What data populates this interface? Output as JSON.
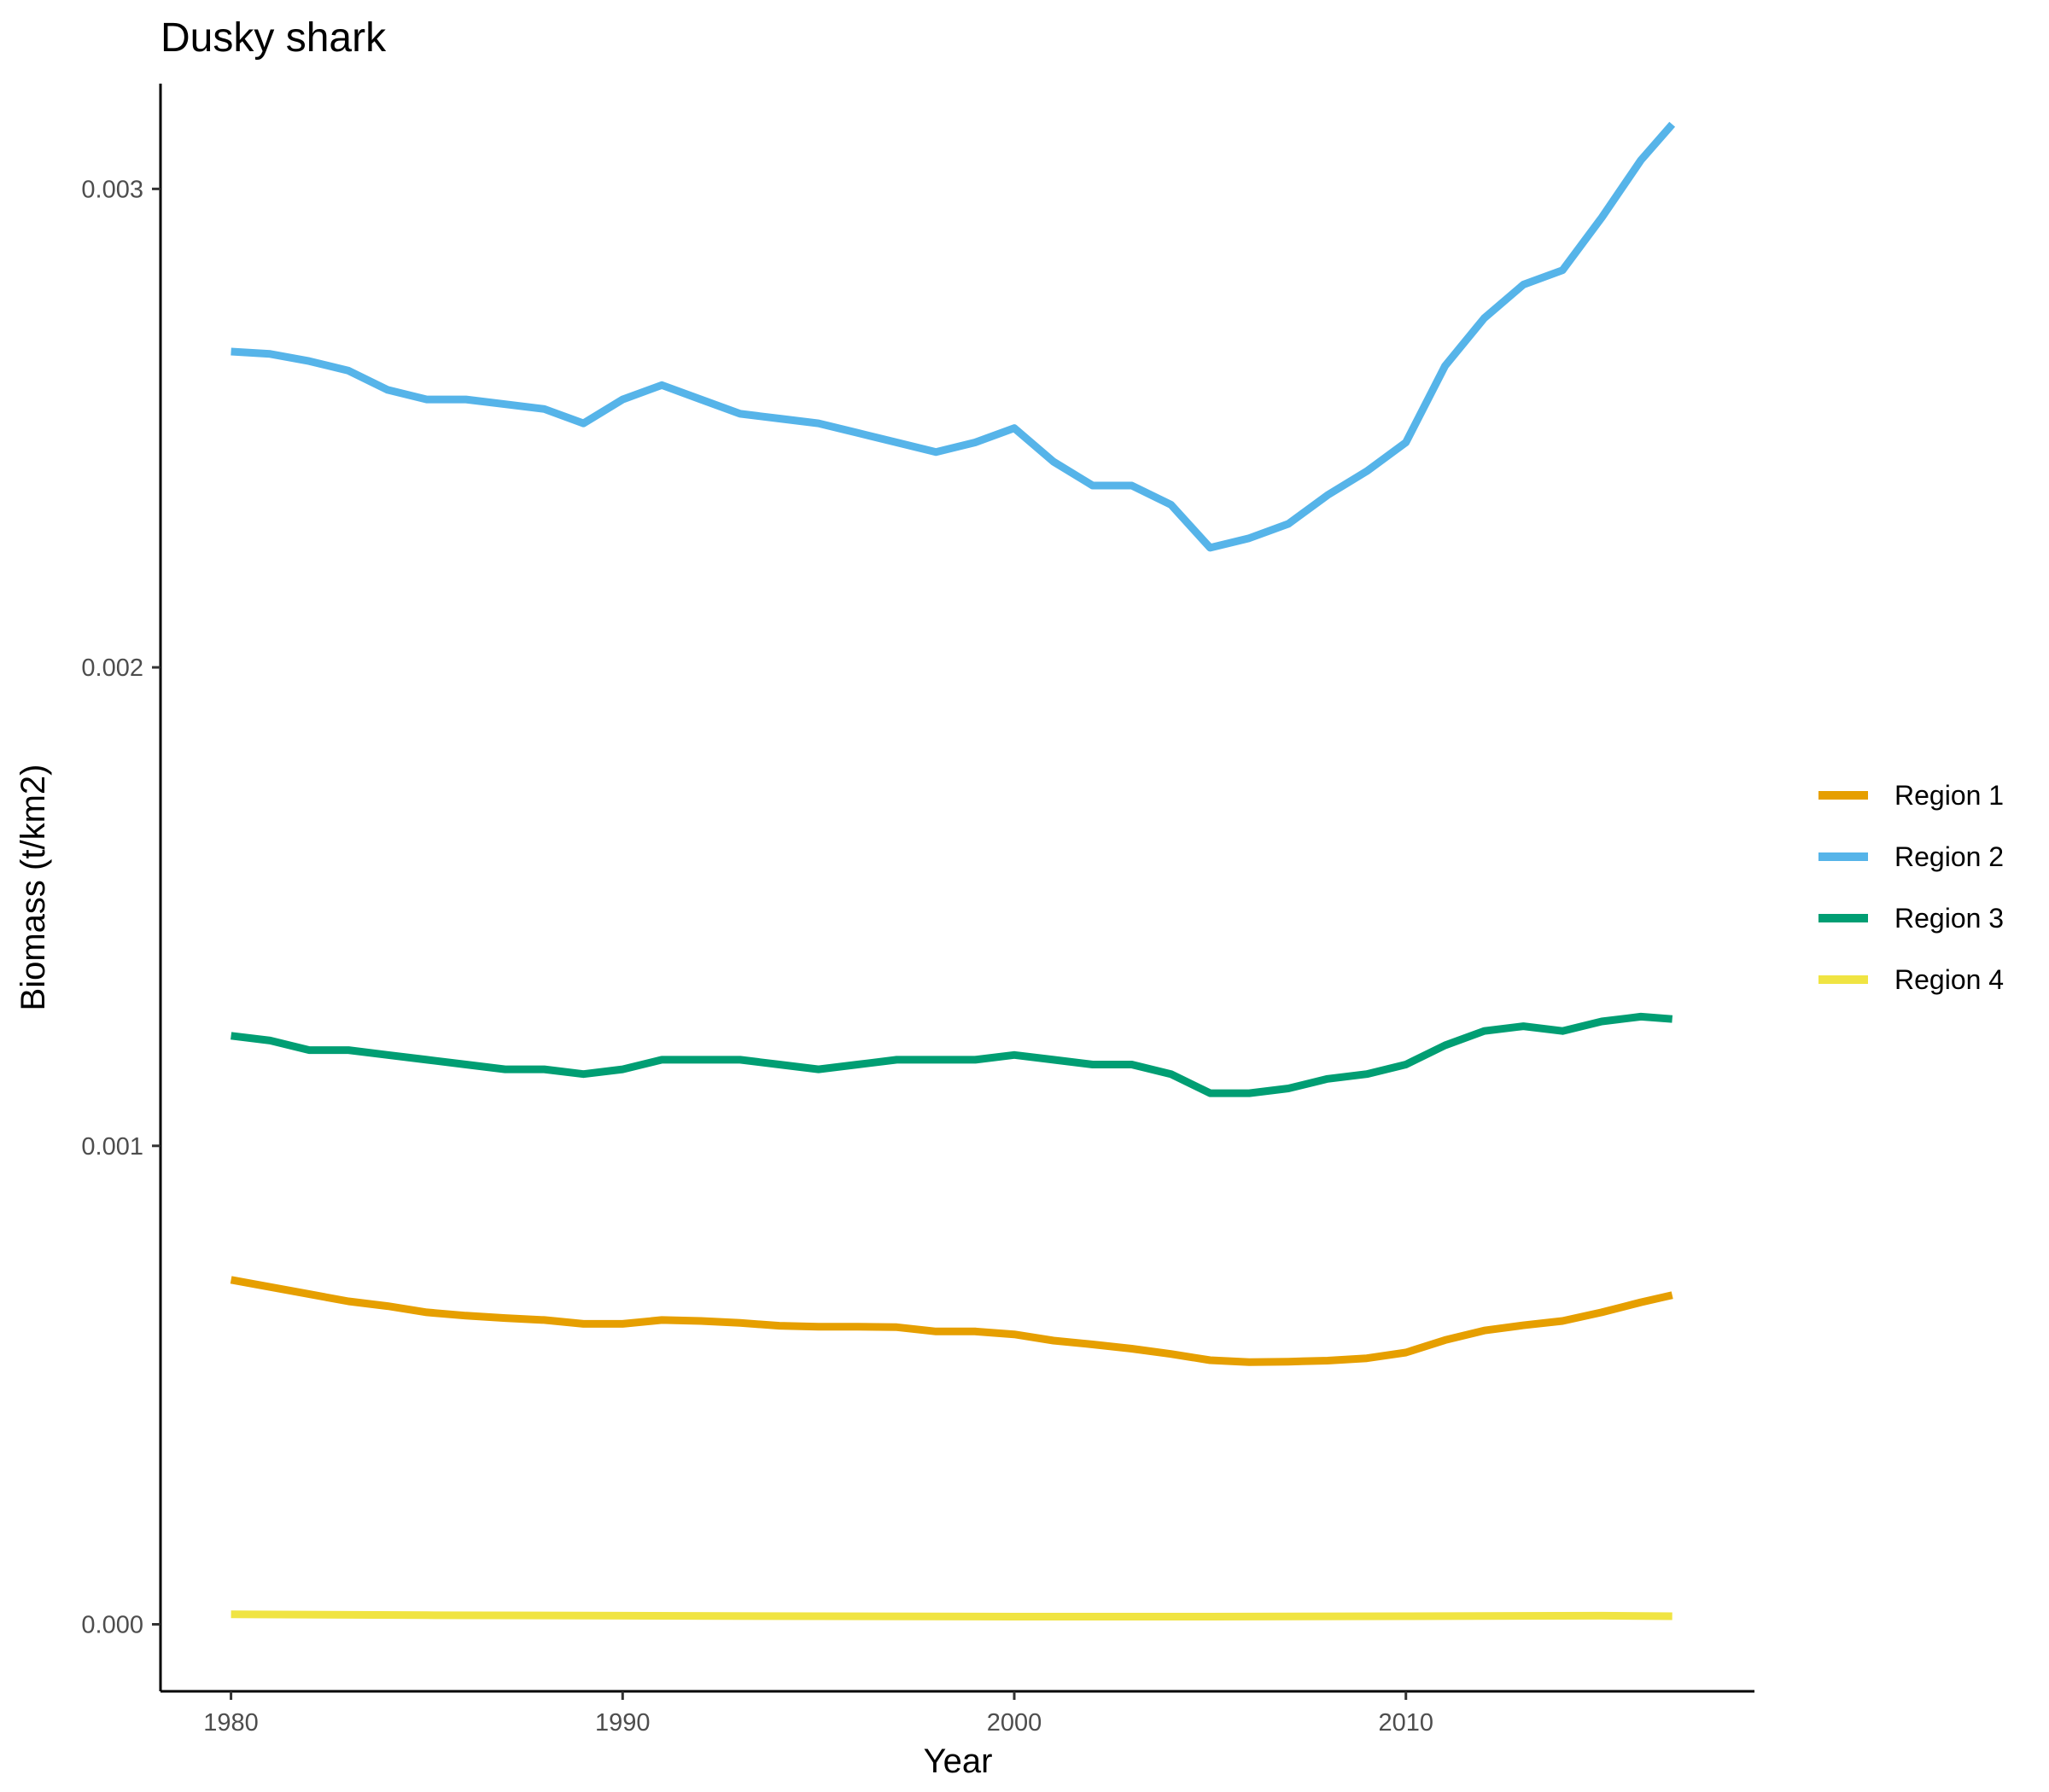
{
  "chart_data": {
    "type": "line",
    "title": "Dusky shark",
    "xlabel": "Year",
    "ylabel": "Biomass (t/km2)",
    "xlim": [
      1978.2,
      2018.9
    ],
    "ylim": [
      -0.00014,
      0.00322
    ],
    "x_ticks": [
      1980,
      1990,
      2000,
      2010
    ],
    "x_tick_labels": [
      "1980",
      "1990",
      "2000",
      "2010"
    ],
    "y_ticks": [
      0,
      0.001,
      0.002,
      0.003
    ],
    "y_tick_labels": [
      "0.000",
      "0.001",
      "0.002",
      "0.003"
    ],
    "grid": false,
    "legend_position": "right",
    "series": [
      {
        "name": "Region 1",
        "color": "#E69F00",
        "x": [
          1980,
          1981,
          1982,
          1983,
          1984,
          1985,
          1986,
          1987,
          1988,
          1989,
          1990,
          1991,
          1992,
          1993,
          1994,
          1995,
          1996,
          1997,
          1998,
          1999,
          2000,
          2001,
          2002,
          2003,
          2004,
          2005,
          2006,
          2007,
          2008,
          2009,
          2010,
          2011,
          2012,
          2013,
          2014,
          2015,
          2016,
          2016.8
        ],
        "y": [
          0.00072,
          0.000705,
          0.00069,
          0.000675,
          0.000665,
          0.000652,
          0.000645,
          0.00064,
          0.000636,
          0.000628,
          0.000628,
          0.000636,
          0.000634,
          0.00063,
          0.000624,
          0.000622,
          0.000622,
          0.000621,
          0.000612,
          0.000612,
          0.000606,
          0.000593,
          0.000585,
          0.000576,
          0.000565,
          0.000552,
          0.000548,
          0.000549,
          0.000551,
          0.000556,
          0.000568,
          0.000594,
          0.000614,
          0.000625,
          0.000634,
          0.000652,
          0.000673,
          0.000688
        ]
      },
      {
        "name": "Region 2",
        "color": "#56B4E9",
        "x": [
          1980,
          1981,
          1982,
          1983,
          1984,
          1985,
          1986,
          1987,
          1988,
          1989,
          1990,
          1991,
          1992,
          1993,
          1994,
          1995,
          1996,
          1997,
          1998,
          1999,
          2000,
          2001,
          2002,
          2003,
          2004,
          2005,
          2006,
          2007,
          2008,
          2009,
          2010,
          2011,
          2012,
          2013,
          2014,
          2015,
          2016,
          2016.8
        ],
        "y": [
          0.00266,
          0.002655,
          0.00264,
          0.00262,
          0.00258,
          0.00256,
          0.00256,
          0.00255,
          0.00254,
          0.00251,
          0.00256,
          0.00259,
          0.00256,
          0.00253,
          0.00252,
          0.00251,
          0.00249,
          0.00247,
          0.00245,
          0.00247,
          0.0025,
          0.00243,
          0.00238,
          0.00238,
          0.00234,
          0.00225,
          0.00227,
          0.0023,
          0.00236,
          0.00241,
          0.00247,
          0.00263,
          0.00273,
          0.0028,
          0.00283,
          0.00294,
          0.00306,
          0.003135
        ]
      },
      {
        "name": "Region 3",
        "color": "#009E73",
        "x": [
          1980,
          1981,
          1982,
          1983,
          1984,
          1985,
          1986,
          1987,
          1988,
          1989,
          1990,
          1991,
          1992,
          1993,
          1994,
          1995,
          1996,
          1997,
          1998,
          1999,
          2000,
          2001,
          2002,
          2003,
          2004,
          2005,
          2006,
          2007,
          2008,
          2009,
          2010,
          2011,
          2012,
          2013,
          2014,
          2015,
          2016,
          2016.8
        ],
        "y": [
          0.00123,
          0.00122,
          0.0012,
          0.0012,
          0.00119,
          0.00118,
          0.00117,
          0.00116,
          0.00116,
          0.00115,
          0.00116,
          0.00118,
          0.00118,
          0.00118,
          0.00117,
          0.00116,
          0.00117,
          0.00118,
          0.00118,
          0.00118,
          0.00119,
          0.00118,
          0.00117,
          0.00117,
          0.00115,
          0.00111,
          0.00111,
          0.00112,
          0.00114,
          0.00115,
          0.00117,
          0.00121,
          0.00124,
          0.00125,
          0.00124,
          0.00126,
          0.00127,
          0.001265
        ]
      },
      {
        "name": "Region 4",
        "color": "#F0E442",
        "x": [
          1980,
          1985,
          1990,
          1995,
          2000,
          2005,
          2010,
          2015,
          2016.8
        ],
        "y": [
          2.1e-05,
          1.9e-05,
          1.8e-05,
          1.7e-05,
          1.6e-05,
          1.6e-05,
          1.7e-05,
          1.8e-05,
          1.7e-05
        ]
      }
    ]
  }
}
